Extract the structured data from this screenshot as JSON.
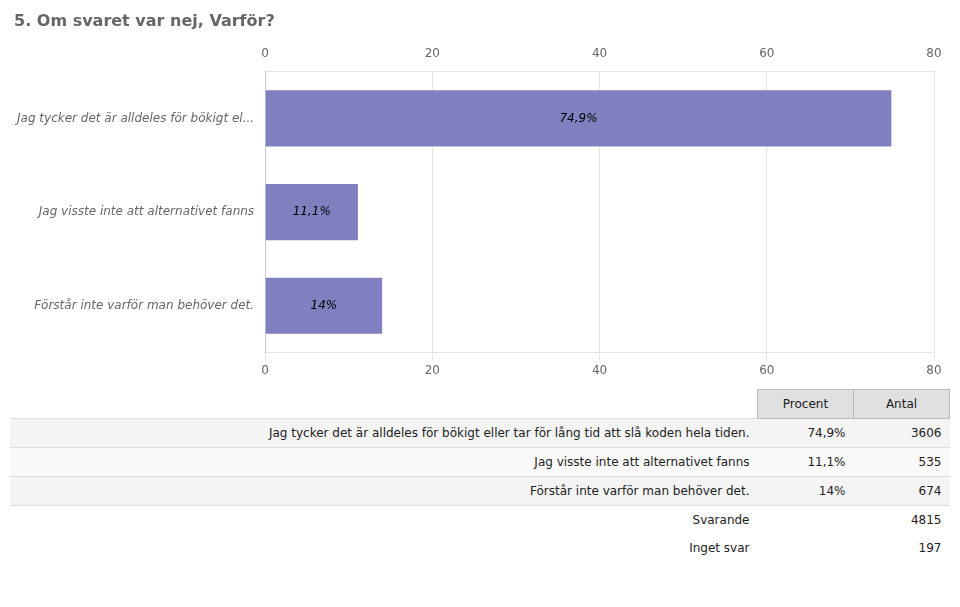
{
  "chart_data": {
    "type": "bar",
    "orientation": "horizontal",
    "title": "5. Om svaret var nej, Varför?",
    "categories": [
      "Jag tycker det är alldeles för bökigt el...",
      "Jag visste inte att alternativet fanns",
      "Förstår inte varför man behöver det."
    ],
    "values": [
      74.9,
      11.1,
      14.0
    ],
    "value_labels": [
      "74,9%",
      "11,1%",
      "14%"
    ],
    "data_labels": true,
    "color": "#8080c0",
    "xlim": [
      0,
      80
    ],
    "xticks": [
      0,
      20,
      40,
      60,
      80
    ],
    "grid": true
  },
  "table": {
    "columns": [
      "Procent",
      "Antal"
    ],
    "rows": [
      [
        "Jag tycker det är alldeles för bökigt eller tar för lång tid att slå koden hela tiden.",
        "74,9%",
        "3606"
      ],
      [
        "Jag visste inte att alternativet fanns",
        "11,1%",
        "535"
      ],
      [
        "Förstår inte varför man behöver det.",
        "14%",
        "674"
      ]
    ],
    "footer": [
      [
        "Svarande",
        "4815"
      ],
      [
        "Inget svar",
        "197"
      ]
    ]
  }
}
